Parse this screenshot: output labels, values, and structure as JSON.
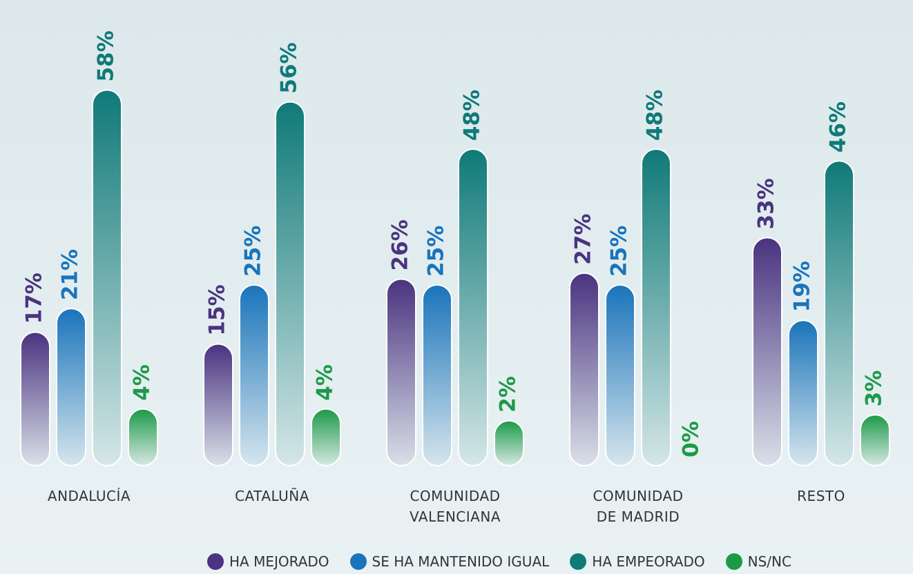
{
  "chart_data": {
    "type": "bar",
    "categories": [
      "ANDALUCÍA",
      "CATALUÑA",
      "COMUNIDAD VALENCIANA",
      "COMUNIDAD DE MADRID",
      "RESTO"
    ],
    "series": [
      {
        "name": "HA MEJORADO",
        "color": "#4a3380",
        "values": [
          17,
          15,
          26,
          27,
          33
        ],
        "value_labels": [
          "17%",
          "15%",
          "26%",
          "27%",
          "33%"
        ]
      },
      {
        "name": "SE HA MANTENIDO IGUAL",
        "color": "#1a74bb",
        "values": [
          21,
          25,
          25,
          25,
          19
        ],
        "value_labels": [
          "21%",
          "25%",
          "25%",
          "25%",
          "19%"
        ]
      },
      {
        "name": "HA EMPEORADO",
        "color": "#0f7a78",
        "values": [
          58,
          56,
          48,
          48,
          46
        ],
        "value_labels": [
          "58%",
          "56%",
          "48%",
          "48%",
          "46%"
        ]
      },
      {
        "name": "NS/NC",
        "color": "#1c9a48",
        "values": [
          4,
          4,
          2,
          0,
          3
        ],
        "value_labels": [
          "4%",
          "4%",
          "2%",
          "0%",
          "3%"
        ]
      }
    ]
  }
}
